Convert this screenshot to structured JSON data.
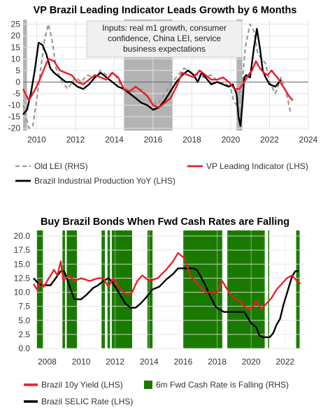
{
  "chart_data": [
    {
      "type": "line",
      "title": "VP Brazil Leading Indicator Leads Growth by 6 Months",
      "annotation_lines": [
        "Inputs: real m1 growth, consumer",
        "confidence, China LEI, service",
        "business expectations"
      ],
      "xlim": [
        2009.3,
        2024
      ],
      "ylim": [
        -21,
        27
      ],
      "x_ticks": [
        "2010",
        "2012",
        "2014",
        "2016",
        "2018",
        "2020",
        "2022",
        "2024"
      ],
      "y_ticks": [
        "25",
        "20",
        "15",
        "10",
        "5",
        "0",
        "-5",
        "-10",
        "-15",
        "-20"
      ],
      "grid": true,
      "shaded_periods": [
        [
          2009.3,
          2009.5
        ],
        [
          2014.5,
          2017.0
        ],
        [
          2020.3,
          2020.6
        ]
      ],
      "legend_labels": [
        "Old LEI (RHS)",
        "VP Leading Indicator (LHS)",
        "Brazil Industrial Production YoY (LHS)"
      ],
      "series": [
        {
          "name": "Old LEI (RHS)",
          "color": "#999999",
          "style": "dashed",
          "x": [
            2009.3,
            2009.6,
            2009.8,
            2010.0,
            2010.2,
            2010.4,
            2010.6,
            2010.8,
            2011.0,
            2011.3,
            2011.6,
            2012.0,
            2012.3,
            2012.6,
            2013.0,
            2013.3,
            2013.6,
            2014.0,
            2014.3,
            2014.6,
            2015.0,
            2015.4,
            2015.8,
            2016.2,
            2016.6,
            2017.0,
            2017.3,
            2017.6,
            2018.0,
            2018.3,
            2018.6,
            2019.0,
            2019.4,
            2019.8,
            2020.0,
            2020.15,
            2020.3,
            2020.45,
            2020.6,
            2020.75,
            2021.0,
            2021.2,
            2021.4,
            2021.6,
            2021.8,
            2022.0,
            2022.3,
            2022.6,
            2022.9,
            2023.1
          ],
          "y": [
            -10,
            -20,
            -19,
            -8,
            5,
            18,
            25,
            18,
            6,
            0,
            -3,
            2,
            0,
            3,
            2,
            5,
            3,
            4,
            -1,
            -5,
            -4,
            -3,
            -7,
            -10,
            -5,
            0,
            3,
            6,
            4,
            3,
            2,
            3,
            0,
            -1,
            -3,
            -8,
            -10,
            -5,
            0,
            15,
            25,
            22,
            12,
            10,
            8,
            0,
            -5,
            2,
            -6,
            -14
          ]
        },
        {
          "name": "VP Leading Indicator (LHS)",
          "color": "#ee1c25",
          "style": "solid",
          "x": [
            2009.3,
            2009.6,
            2010.0,
            2010.3,
            2010.6,
            2010.9,
            2011.2,
            2011.5,
            2011.8,
            2012.1,
            2012.4,
            2012.7,
            2013.0,
            2013.3,
            2013.6,
            2013.9,
            2014.2,
            2014.5,
            2014.8,
            2015.1,
            2015.4,
            2015.7,
            2016.0,
            2016.3,
            2016.6,
            2016.9,
            2017.2,
            2017.5,
            2017.8,
            2018.1,
            2018.4,
            2018.7,
            2019.0,
            2019.3,
            2019.6,
            2019.9,
            2020.2,
            2020.45,
            2020.7,
            2020.9,
            2021.1,
            2021.3,
            2021.5,
            2021.7,
            2021.9,
            2022.1,
            2022.4,
            2022.7,
            2023.0,
            2023.2
          ],
          "y": [
            -3,
            -8,
            -2,
            4,
            10,
            9,
            5,
            4,
            3,
            0,
            -1,
            1,
            3,
            2,
            1,
            4,
            2,
            -3,
            -4,
            -2,
            -4,
            -6,
            -10,
            -11,
            -9,
            -7,
            -2,
            4,
            3,
            2,
            5,
            3,
            1,
            1,
            2,
            0,
            -3,
            -3,
            0,
            3,
            5,
            9,
            6,
            4,
            3,
            5,
            2,
            -2,
            -6,
            -8
          ]
        },
        {
          "name": "Brazil Industrial Production YoY (LHS)",
          "color": "#000000",
          "style": "solid",
          "x": [
            2009.3,
            2009.5,
            2009.7,
            2009.9,
            2010.1,
            2010.3,
            2010.5,
            2010.7,
            2010.9,
            2011.2,
            2011.5,
            2011.8,
            2012.1,
            2012.4,
            2012.7,
            2013.0,
            2013.3,
            2013.6,
            2013.9,
            2014.2,
            2014.5,
            2014.8,
            2015.1,
            2015.4,
            2015.7,
            2016.0,
            2016.3,
            2016.6,
            2016.9,
            2017.2,
            2017.5,
            2017.8,
            2018.1,
            2018.3,
            2018.5,
            2018.7,
            2019.0,
            2019.3,
            2019.6,
            2019.9,
            2020.1,
            2020.3,
            2020.4,
            2020.5,
            2020.6,
            2020.7,
            2020.8,
            2021.0,
            2021.2,
            2021.35,
            2021.5,
            2021.65,
            2021.8,
            2022.0,
            2022.3,
            2022.6
          ],
          "y": [
            -14,
            -12,
            -5,
            5,
            17,
            16,
            12,
            6,
            4,
            2,
            0,
            0,
            -2,
            -3,
            -1,
            2,
            4,
            2,
            0,
            -2,
            -3,
            -5,
            -7,
            -9,
            -10,
            -12,
            -11,
            -8,
            -4,
            0,
            3,
            5,
            3,
            0,
            4,
            2,
            -1,
            0,
            -1,
            -2,
            -1,
            -5,
            -15,
            -19,
            -10,
            2,
            3,
            2,
            15,
            23,
            15,
            5,
            2,
            -1,
            -2,
            1
          ]
        }
      ]
    },
    {
      "type": "line",
      "title": "Buy Brazil Bonds When Fwd Cash Rates are Falling",
      "xlim": [
        2007.2,
        2023.2
      ],
      "ylim": [
        0,
        21
      ],
      "x_ticks": [
        "2008",
        "2010",
        "2012",
        "2014",
        "2016",
        "2018",
        "2020",
        "2022"
      ],
      "y_ticks": [
        "20.0",
        "17.5",
        "15.0",
        "12.5",
        "10.0",
        "7.5",
        "5.0",
        "2.5",
        "0.0"
      ],
      "grid": true,
      "legend_labels": [
        "Brazil 10y Yield (LHS)",
        "6m Fwd Cash Rate is Falling (RHS)",
        "Brazil SELIC Rate (LHS)"
      ],
      "falling_periods": {
        "name": "6m Fwd Cash Rate is Falling (RHS)",
        "color": "#1a7a00",
        "periods": [
          [
            2007.4,
            2007.75
          ],
          [
            2008.9,
            2009.05
          ],
          [
            2009.15,
            2009.75
          ],
          [
            2011.2,
            2011.4
          ],
          [
            2011.55,
            2011.7
          ],
          [
            2011.8,
            2013.0
          ],
          [
            2013.9,
            2014.2
          ],
          [
            2016.0,
            2018.3
          ],
          [
            2018.6,
            2020.8
          ],
          [
            2021.0,
            2021.05
          ],
          [
            2022.65,
            2022.85
          ]
        ]
      },
      "series": [
        {
          "name": "Brazil 10y Yield (LHS)",
          "color": "#ee1c25",
          "style": "solid",
          "x": [
            2007.2,
            2007.4,
            2007.6,
            2007.8,
            2008.0,
            2008.2,
            2008.4,
            2008.6,
            2008.8,
            2008.95,
            2009.1,
            2009.3,
            2009.6,
            2010.0,
            2010.5,
            2011.0,
            2011.3,
            2011.6,
            2011.9,
            2012.2,
            2012.5,
            2012.8,
            2013.0,
            2013.3,
            2013.6,
            2014.0,
            2014.5,
            2015.0,
            2015.4,
            2015.7,
            2015.9,
            2016.1,
            2016.4,
            2016.7,
            2017.0,
            2017.3,
            2017.6,
            2018.0,
            2018.3,
            2018.5,
            2018.7,
            2019.0,
            2019.3,
            2019.6,
            2019.9,
            2020.1,
            2020.3,
            2020.6,
            2020.9,
            2021.2,
            2021.5,
            2021.8,
            2022.1,
            2022.4,
            2022.7,
            2022.9
          ],
          "y": [
            11.5,
            10.5,
            12.0,
            11.0,
            12.0,
            13.0,
            14.0,
            13.0,
            15.5,
            12.0,
            12.5,
            13.0,
            12.0,
            12.5,
            12.0,
            12.5,
            12.5,
            11.0,
            12.5,
            11.0,
            10.0,
            9.5,
            10.0,
            12.0,
            13.0,
            12.0,
            12.5,
            14.0,
            15.5,
            17.0,
            16.5,
            16.0,
            13.0,
            12.0,
            11.0,
            10.0,
            10.0,
            10.0,
            12.0,
            11.0,
            10.0,
            9.0,
            8.5,
            7.5,
            7.0,
            7.5,
            8.5,
            7.0,
            8.0,
            9.0,
            10.5,
            11.5,
            12.5,
            13.0,
            12.0,
            11.5
          ]
        },
        {
          "name": "Brazil SELIC Rate (LHS)",
          "color": "#000000",
          "style": "solid",
          "x": [
            2007.2,
            2007.5,
            2007.8,
            2008.2,
            2008.5,
            2008.8,
            2009.0,
            2009.3,
            2009.6,
            2010.0,
            2010.3,
            2010.7,
            2011.0,
            2011.3,
            2011.6,
            2011.8,
            2012.0,
            2012.3,
            2012.6,
            2012.9,
            2013.2,
            2013.5,
            2013.8,
            2014.2,
            2014.6,
            2015.0,
            2015.4,
            2015.7,
            2016.0,
            2016.6,
            2016.8,
            2017.0,
            2017.3,
            2017.6,
            2017.9,
            2018.1,
            2018.4,
            2019.0,
            2019.6,
            2019.8,
            2020.0,
            2020.3,
            2020.5,
            2020.7,
            2021.0,
            2021.1,
            2021.3,
            2021.5,
            2021.7,
            2021.9,
            2022.2,
            2022.4,
            2022.6,
            2022.8
          ],
          "y": [
            12.5,
            11.5,
            11.25,
            11.25,
            12.5,
            13.75,
            13.75,
            11.25,
            8.75,
            8.75,
            9.5,
            10.75,
            11.25,
            12.0,
            12.5,
            12.0,
            11.0,
            9.5,
            8.0,
            7.25,
            7.25,
            8.0,
            9.0,
            10.5,
            11.0,
            12.25,
            13.25,
            14.25,
            14.25,
            14.25,
            14.0,
            13.0,
            11.25,
            9.25,
            7.5,
            7.0,
            6.5,
            6.5,
            6.5,
            5.5,
            4.5,
            3.75,
            2.25,
            2.0,
            2.0,
            2.0,
            2.75,
            4.25,
            5.25,
            7.75,
            10.75,
            12.75,
            13.75,
            13.75
          ]
        }
      ]
    }
  ]
}
